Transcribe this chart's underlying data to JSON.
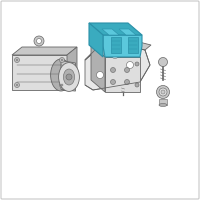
{
  "background_color": "#ffffff",
  "border_color": "#c8c8c8",
  "line_color": "#666666",
  "highlight_color": "#5bc8dc",
  "highlight_dark": "#3aabbf",
  "highlight_edge": "#2a90a8",
  "gray_light": "#dedede",
  "gray_mid": "#c8c8c8",
  "gray_dark": "#b0b0b0",
  "figsize": [
    2.0,
    2.0
  ],
  "dpi": 100
}
